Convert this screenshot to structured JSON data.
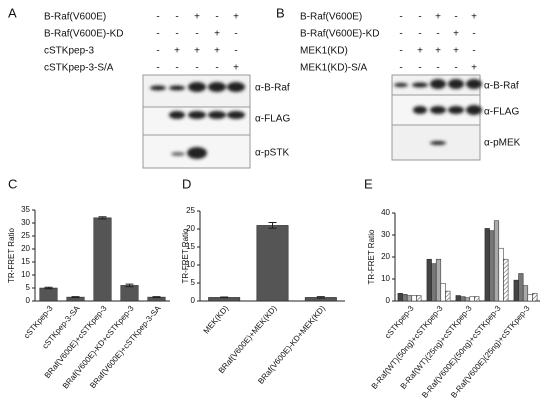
{
  "panels": [
    {
      "letter": "A",
      "rows": [
        {
          "label": "B-Raf(V600E)",
          "signs": [
            "-",
            "-",
            "+",
            "-",
            "+"
          ]
        },
        {
          "label": "B-Raf(V600E)-KD",
          "signs": [
            "-",
            "-",
            "-",
            "+",
            "-"
          ]
        },
        {
          "label": "cSTKpep-3",
          "signs": [
            "-",
            "+",
            "+",
            "+",
            "-"
          ]
        },
        {
          "label": "cSTKpep-3-S/A",
          "signs": [
            "-",
            "-",
            "-",
            "-",
            "+"
          ]
        }
      ],
      "blots": [
        "α-B-Raf",
        "α-FLAG",
        "α-pSTK"
      ]
    },
    {
      "letter": "B",
      "rows": [
        {
          "label": "B-Raf(V600E)",
          "signs": [
            "-",
            "-",
            "+",
            "-",
            "+"
          ]
        },
        {
          "label": "B-Raf(V600E)-KD",
          "signs": [
            "-",
            "-",
            "-",
            "+",
            "-"
          ]
        },
        {
          "label": "MEK1(KD)",
          "signs": [
            "-",
            "+",
            "+",
            "+",
            "-"
          ]
        },
        {
          "label": "MEK1(KD)-S/A",
          "signs": [
            "-",
            "-",
            "-",
            "-",
            "+"
          ]
        }
      ],
      "blots": [
        "α-B-Raf",
        "α-FLAG",
        "α-pMEK"
      ]
    }
  ],
  "chart_data": [
    {
      "type": "bar",
      "letter": "C",
      "y_label": "TR-FRET Ratio",
      "color": "#555555",
      "categories": [
        "cSTKpep-3",
        "cSTKpep-3-SA",
        "BRaf(V600E)+cSTKpep-3",
        "BRaf(V600E)-KD+cSTKpep-3",
        "BRaf(V600E)+cSTKpep-3-SA"
      ],
      "values": [
        5,
        1.5,
        32,
        6,
        1.5
      ],
      "errors": [
        0.3,
        0.2,
        0.4,
        0.5,
        0.2
      ],
      "ylim": [
        0,
        35
      ],
      "yticks": [
        0,
        5,
        10,
        15,
        20,
        25,
        30,
        35
      ]
    },
    {
      "type": "bar",
      "letter": "D",
      "y_label": "TR-FRET Ratio",
      "color": "#555555",
      "categories": [
        "MEK(KD)",
        "BRaf(V600E)+MEK(KD)",
        "BRaf(V600E)-KD+MEK(KD)"
      ],
      "values": [
        1,
        21,
        1
      ],
      "errors": [
        0.1,
        0.8,
        0.2
      ],
      "ylim": [
        0,
        25
      ],
      "yticks": [
        0,
        5,
        10,
        15,
        20,
        25
      ]
    },
    {
      "type": "grouped-bar",
      "letter": "E",
      "y_label": "TR-FRET Ratio",
      "categories": [
        "cSTKpep-3",
        "B-Raf(WT)(50ng)+cSTKpep-3",
        "B-Raf(WT)(25ng)+cSTKpep-3",
        "B-Raf(V600E)(50ng)+cSTKpep-3",
        "B-Raf(V600E)(25ng)+cSTKpep-3"
      ],
      "series": [
        {
          "color": "#444444",
          "values": [
            3.5,
            19,
            2.5,
            33,
            9.5
          ]
        },
        {
          "color": "#777777",
          "values": [
            3,
            17,
            2,
            32,
            12.5
          ]
        },
        {
          "color": "#aaaaaa",
          "values": [
            2.5,
            19,
            1.5,
            36.5,
            7
          ]
        },
        {
          "color": "#ffffff",
          "values": [
            2.5,
            8,
            2,
            24,
            3
          ]
        },
        {
          "color": "#cccccc",
          "values": [
            2.5,
            4.5,
            2,
            19,
            3.5
          ]
        }
      ],
      "ylim": [
        0,
        40
      ],
      "yticks": [
        0,
        10,
        20,
        30,
        40
      ]
    }
  ]
}
